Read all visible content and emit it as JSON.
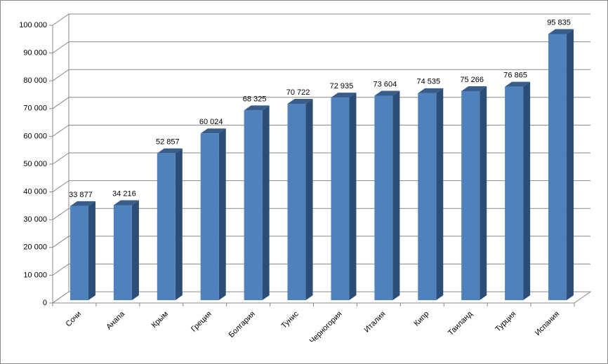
{
  "chart_data": {
    "type": "bar3d",
    "categories": [
      "Сочи",
      "Анапа",
      "Крым",
      "Греция",
      "Болгария",
      "Тунис",
      "Черногория",
      "Италия",
      "Кипр",
      "Таиланд",
      "Турция",
      "Испания"
    ],
    "values": [
      33877,
      34216,
      52857,
      60024,
      68325,
      70722,
      72935,
      73604,
      74535,
      75266,
      76865,
      95835
    ],
    "value_labels": [
      "33 877",
      "34 216",
      "52 857",
      "60 024",
      "68 325",
      "70 722",
      "72 935",
      "73 604",
      "74 535",
      "75 266",
      "76 865",
      "95 835"
    ],
    "color": "#4f81bd",
    "ylim": [
      0,
      100000
    ],
    "yticks": [
      0,
      {
        "value": 10000,
        "label": "10 000"
      },
      {
        "value": 20000,
        "label": "20 000"
      },
      {
        "value": 30000,
        "label": "30 000"
      },
      {
        "value": 40000,
        "label": "40 000"
      },
      {
        "value": 50000,
        "label": "50 000"
      },
      {
        "value": 60000,
        "label": "60 000"
      },
      {
        "value": 70000,
        "label": "70 000"
      },
      {
        "value": 80000,
        "label": "80 000"
      },
      {
        "value": 90000,
        "label": "90 000"
      },
      {
        "value": 100000,
        "label": "100 000"
      }
    ],
    "grid": true
  }
}
